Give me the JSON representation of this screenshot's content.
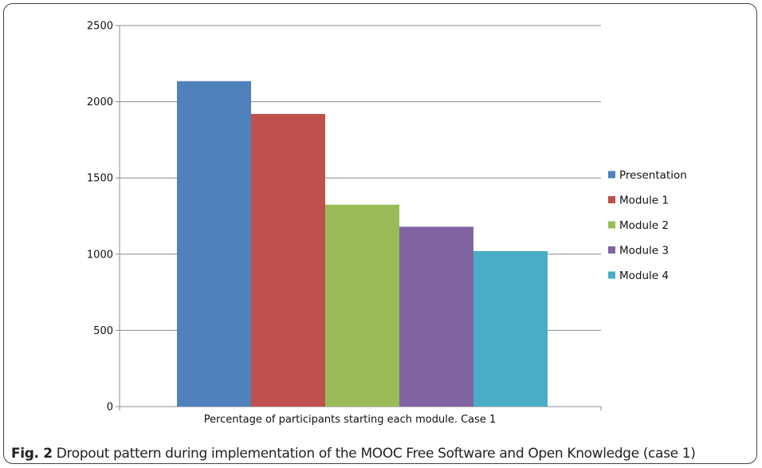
{
  "figure": {
    "caption_label": "Fig. 2",
    "caption_text": " Dropout pattern during implementation of the MOOC Free Software and Open Knowledge (case 1)"
  },
  "chart_data": {
    "type": "bar",
    "title": "",
    "xlabel": "Percentage of participants starting each module. Case 1",
    "ylabel": "",
    "ylim": [
      0,
      2500
    ],
    "yticks": [
      0,
      500,
      1000,
      1500,
      2000,
      2500
    ],
    "grid": true,
    "legend_position": "right",
    "series": [
      {
        "name": "Presentation",
        "value": 2135,
        "color": "#4F81BD"
      },
      {
        "name": "Module 1",
        "value": 1920,
        "color": "#C0504D"
      },
      {
        "name": "Module 2",
        "value": 1325,
        "color": "#9BBB59"
      },
      {
        "name": "Module 3",
        "value": 1180,
        "color": "#8064A2"
      },
      {
        "name": "Module 4",
        "value": 1020,
        "color": "#4BACC6"
      }
    ]
  }
}
